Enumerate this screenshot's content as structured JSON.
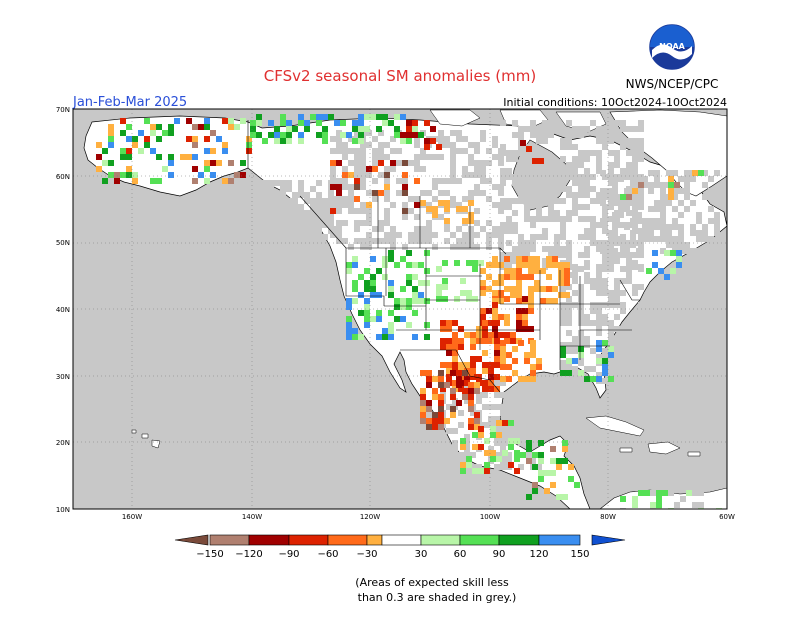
{
  "title": "CFSv2 seasonal SM anomalies (mm)",
  "period": "Jan-Feb-Mar 2025",
  "initial_conditions": "Initial conditions: 10Oct2024-10Oct2024",
  "agency": "NWS/NCEP/CPC",
  "logo_text": "NOAA",
  "latitude_labels": [
    "70N",
    "60N",
    "50N",
    "40N",
    "30N",
    "20N",
    "10N"
  ],
  "longitude_labels": [
    "160W",
    "140W",
    "120W",
    "100W",
    "80W",
    "60W"
  ],
  "colorbar": {
    "ticks": [
      "−150",
      "−120",
      "−90",
      "−60",
      "−30",
      "30",
      "60",
      "90",
      "120",
      "150"
    ],
    "colors": [
      "#7a4a3a",
      "#b08070",
      "#a00000",
      "#dd2200",
      "#ff6a1a",
      "#ffb040",
      "#ffffff",
      "#b8f5a8",
      "#55e055",
      "#10a020",
      "#3a8ef0",
      "#1050d0"
    ]
  },
  "note_line1": "(Areas of expected skill less",
  "note_line2": "than 0.3 are shaded in grey.)",
  "colors": {
    "ocean": "#c8c8c8",
    "land": "#ffffff",
    "grey_skill": "#c8c8c8",
    "title": "#e03030",
    "subtitle": "#2a4fd8"
  }
}
